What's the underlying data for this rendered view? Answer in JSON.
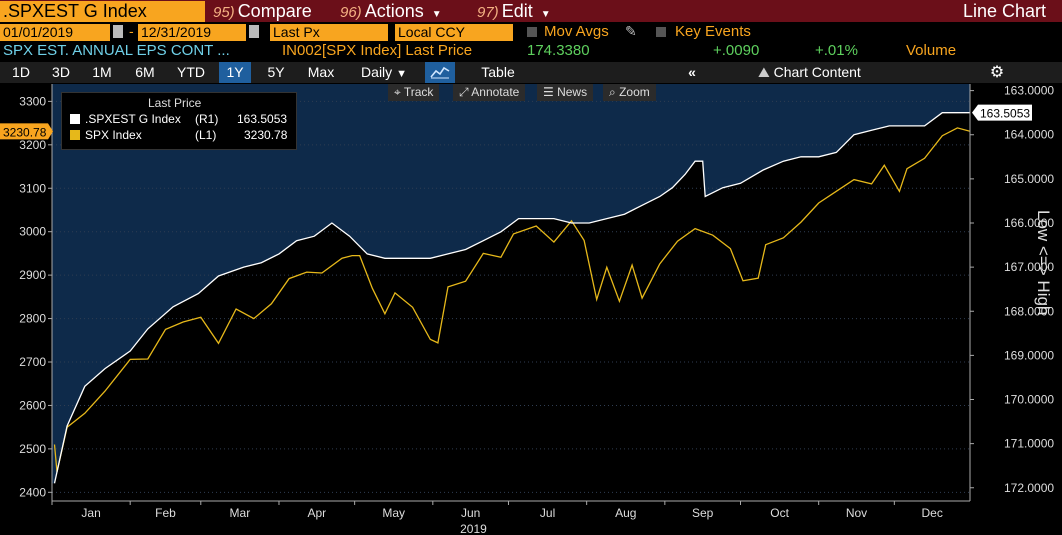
{
  "header": {
    "ticker": ".SPXEST G Index",
    "compare_num": "95)",
    "compare_label": "Compare",
    "actions_num": "96)",
    "actions_label": "Actions",
    "edit_num": "97)",
    "edit_label": "Edit",
    "title": "Line Chart"
  },
  "controls": {
    "start_date": "01/01/2019",
    "end_date": "12/31/2019",
    "price_field": "Last Px",
    "currency": "Local CCY",
    "mov_avgs": "Mov Avgs",
    "key_events": "Key Events"
  },
  "info": {
    "description": "SPX EST. ANNUAL EPS CONT ...",
    "security_line": "IN002[SPX Index] Last Price",
    "last_price": "174.3380",
    "change": "+.0090",
    "pct_change": "+.01%",
    "volume": "Volume"
  },
  "toolbar": {
    "ranges": [
      "1D",
      "3D",
      "1M",
      "6M",
      "YTD",
      "1Y",
      "5Y",
      "Max"
    ],
    "active_range": "1Y",
    "frequency": "Daily",
    "table": "Table",
    "chart_content": "Chart Content"
  },
  "chart_tools": {
    "track": "Track",
    "annotate": "Annotate",
    "news": "News",
    "zoom": "Zoom"
  },
  "legend": {
    "title": "Last Price",
    "rows": [
      {
        "name": ".SPXEST G Index",
        "axis": "(R1)",
        "value": "163.5053"
      },
      {
        "name": "SPX Index",
        "axis": "(L1)",
        "value": "3230.78"
      }
    ]
  },
  "side_label": "Low <=> High",
  "colors": {
    "white_series": "#ffffff",
    "yellow_series": "#e6b81a",
    "bg_upper": "#0e2a4a",
    "bg_lower": "#000000",
    "orange": "#f8a51f",
    "maroon": "#6b0f19"
  },
  "chart_data": {
    "type": "line",
    "xlabel": "2019",
    "x_ticks": [
      "Jan",
      "Feb",
      "Mar",
      "Apr",
      "May",
      "Jun",
      "Jul",
      "Aug",
      "Sep",
      "Oct",
      "Nov",
      "Dec"
    ],
    "left_axis": {
      "ticks": [
        2400,
        2500,
        2600,
        2700,
        2800,
        2900,
        3000,
        3100,
        3200,
        3300
      ],
      "range": [
        2380,
        3340
      ],
      "current_label": "3230.78"
    },
    "right_axis": {
      "inverted": true,
      "ticks": [
        "163.0000",
        "164.0000",
        "165.0000",
        "166.0000",
        "167.0000",
        "168.0000",
        "169.0000",
        "170.0000",
        "171.0000",
        "172.0000"
      ],
      "range": [
        162.85,
        172.3
      ],
      "current_label": "163.5053"
    },
    "series": [
      {
        "name": ".SPXEST G Index",
        "axis": "right",
        "points": [
          [
            "2019-01-02",
            171.9
          ],
          [
            "2019-01-07",
            170.6
          ],
          [
            "2019-01-14",
            169.7
          ],
          [
            "2019-01-22",
            169.3
          ],
          [
            "2019-02-01",
            168.9
          ],
          [
            "2019-02-08",
            168.4
          ],
          [
            "2019-02-18",
            167.9
          ],
          [
            "2019-02-28",
            167.6
          ],
          [
            "2019-03-08",
            167.2
          ],
          [
            "2019-03-18",
            167.0
          ],
          [
            "2019-03-25",
            166.9
          ],
          [
            "2019-04-01",
            166.7
          ],
          [
            "2019-04-08",
            166.4
          ],
          [
            "2019-04-15",
            166.3
          ],
          [
            "2019-04-22",
            166.0
          ],
          [
            "2019-04-29",
            166.3
          ],
          [
            "2019-05-06",
            166.7
          ],
          [
            "2019-05-13",
            166.8
          ],
          [
            "2019-05-20",
            166.8
          ],
          [
            "2019-05-31",
            166.8
          ],
          [
            "2019-06-07",
            166.7
          ],
          [
            "2019-06-14",
            166.6
          ],
          [
            "2019-06-21",
            166.4
          ],
          [
            "2019-06-28",
            166.2
          ],
          [
            "2019-07-05",
            165.9
          ],
          [
            "2019-07-12",
            165.9
          ],
          [
            "2019-07-19",
            165.9
          ],
          [
            "2019-07-26",
            166.0
          ],
          [
            "2019-08-02",
            166.0
          ],
          [
            "2019-08-09",
            165.9
          ],
          [
            "2019-08-16",
            165.8
          ],
          [
            "2019-08-23",
            165.6
          ],
          [
            "2019-08-30",
            165.4
          ],
          [
            "2019-09-04",
            165.2
          ],
          [
            "2019-09-09",
            164.9
          ],
          [
            "2019-09-13",
            164.6
          ],
          [
            "2019-09-16",
            164.6
          ],
          [
            "2019-09-17",
            165.4
          ],
          [
            "2019-09-24",
            165.2
          ],
          [
            "2019-10-01",
            165.1
          ],
          [
            "2019-10-10",
            164.8
          ],
          [
            "2019-10-18",
            164.6
          ],
          [
            "2019-10-25",
            164.5
          ],
          [
            "2019-11-01",
            164.5
          ],
          [
            "2019-11-08",
            164.4
          ],
          [
            "2019-11-15",
            164.0
          ],
          [
            "2019-11-22",
            163.9
          ],
          [
            "2019-11-29",
            163.8
          ],
          [
            "2019-12-06",
            163.8
          ],
          [
            "2019-12-13",
            163.8
          ],
          [
            "2019-12-20",
            163.5
          ],
          [
            "2019-12-27",
            163.5
          ],
          [
            "2019-12-31",
            163.5
          ]
        ]
      },
      {
        "name": "SPX Index",
        "axis": "left",
        "points": [
          [
            "2019-01-02",
            2510
          ],
          [
            "2019-01-03",
            2447
          ],
          [
            "2019-01-07",
            2550
          ],
          [
            "2019-01-14",
            2582
          ],
          [
            "2019-01-22",
            2633
          ],
          [
            "2019-02-01",
            2706
          ],
          [
            "2019-02-08",
            2707
          ],
          [
            "2019-02-15",
            2775
          ],
          [
            "2019-02-22",
            2792
          ],
          [
            "2019-03-01",
            2803
          ],
          [
            "2019-03-08",
            2743
          ],
          [
            "2019-03-15",
            2822
          ],
          [
            "2019-03-22",
            2800
          ],
          [
            "2019-03-29",
            2834
          ],
          [
            "2019-04-05",
            2892
          ],
          [
            "2019-04-12",
            2907
          ],
          [
            "2019-04-18",
            2905
          ],
          [
            "2019-04-26",
            2939
          ],
          [
            "2019-04-30",
            2945
          ],
          [
            "2019-05-03",
            2945
          ],
          [
            "2019-05-08",
            2870
          ],
          [
            "2019-05-13",
            2811
          ],
          [
            "2019-05-17",
            2859
          ],
          [
            "2019-05-24",
            2826
          ],
          [
            "2019-05-31",
            2752
          ],
          [
            "2019-06-03",
            2744
          ],
          [
            "2019-06-07",
            2873
          ],
          [
            "2019-06-14",
            2886
          ],
          [
            "2019-06-21",
            2950
          ],
          [
            "2019-06-28",
            2941
          ],
          [
            "2019-07-03",
            2995
          ],
          [
            "2019-07-12",
            3013
          ],
          [
            "2019-07-19",
            2976
          ],
          [
            "2019-07-26",
            3025
          ],
          [
            "2019-07-31",
            2980
          ],
          [
            "2019-08-05",
            2844
          ],
          [
            "2019-08-09",
            2918
          ],
          [
            "2019-08-14",
            2840
          ],
          [
            "2019-08-19",
            2923
          ],
          [
            "2019-08-23",
            2847
          ],
          [
            "2019-08-30",
            2926
          ],
          [
            "2019-09-06",
            2978
          ],
          [
            "2019-09-13",
            3007
          ],
          [
            "2019-09-20",
            2992
          ],
          [
            "2019-09-27",
            2961
          ],
          [
            "2019-10-02",
            2887
          ],
          [
            "2019-10-08",
            2893
          ],
          [
            "2019-10-11",
            2970
          ],
          [
            "2019-10-18",
            2986
          ],
          [
            "2019-10-25",
            3022
          ],
          [
            "2019-11-01",
            3066
          ],
          [
            "2019-11-08",
            3093
          ],
          [
            "2019-11-15",
            3120
          ],
          [
            "2019-11-22",
            3110
          ],
          [
            "2019-11-27",
            3153
          ],
          [
            "2019-12-03",
            3093
          ],
          [
            "2019-12-06",
            3145
          ],
          [
            "2019-12-13",
            3169
          ],
          [
            "2019-12-20",
            3221
          ],
          [
            "2019-12-26",
            3239
          ],
          [
            "2019-12-31",
            3231
          ]
        ]
      }
    ]
  }
}
